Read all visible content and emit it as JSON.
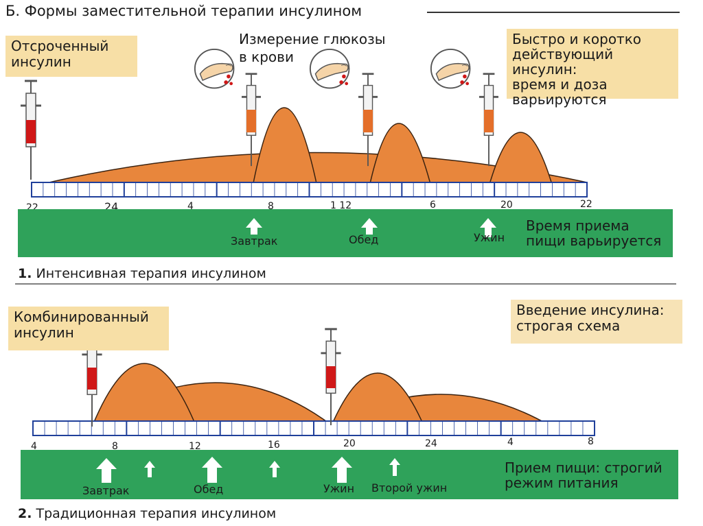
{
  "title": "Б. Формы заместительной терапии инсулином",
  "section1": {
    "box_left": [
      "Отсроченный",
      "инсулин"
    ],
    "measure": [
      "Измерение глюкозы",
      "в крови"
    ],
    "box_right": [
      "Быстро и коротко",
      "действующий инсулин:",
      "время и доза",
      "варьируются"
    ],
    "ticks": [
      "22",
      "24",
      "4",
      "8",
      "1 12",
      "6",
      "20",
      "22"
    ],
    "meals": [
      "Завтрак",
      "Обед",
      "Ужин"
    ],
    "note": [
      "Время приема",
      "пищи варьируется"
    ],
    "caption_num": "1.",
    "caption": "Интенсивная терапия инсулином"
  },
  "section2": {
    "box_left": [
      "Комбинированный",
      "инсулин"
    ],
    "box_right": [
      "Введение инсулина:",
      "строгая схема"
    ],
    "ticks": [
      "4",
      "8",
      "12",
      "16",
      "20",
      "24",
      "4",
      "8"
    ],
    "meals": [
      "Завтрак",
      "Обед",
      "Ужин",
      "Второй ужин"
    ],
    "note": [
      "Прием пищи: строгий",
      "режим питания"
    ],
    "caption_num": "2.",
    "caption": "Традиционная терапия инсулином"
  },
  "colors": {
    "insulin_fill": "#e8863c",
    "insulin_stroke": "#3a2210",
    "meal_band": "#2fa25a",
    "label_box": "#f7dfa6",
    "timeline_blue": "#1f3f9a",
    "blood_red": "#d01818"
  },
  "icons": [
    "syringe-icon",
    "finger-prick-icon",
    "meal-arrow-icon"
  ]
}
